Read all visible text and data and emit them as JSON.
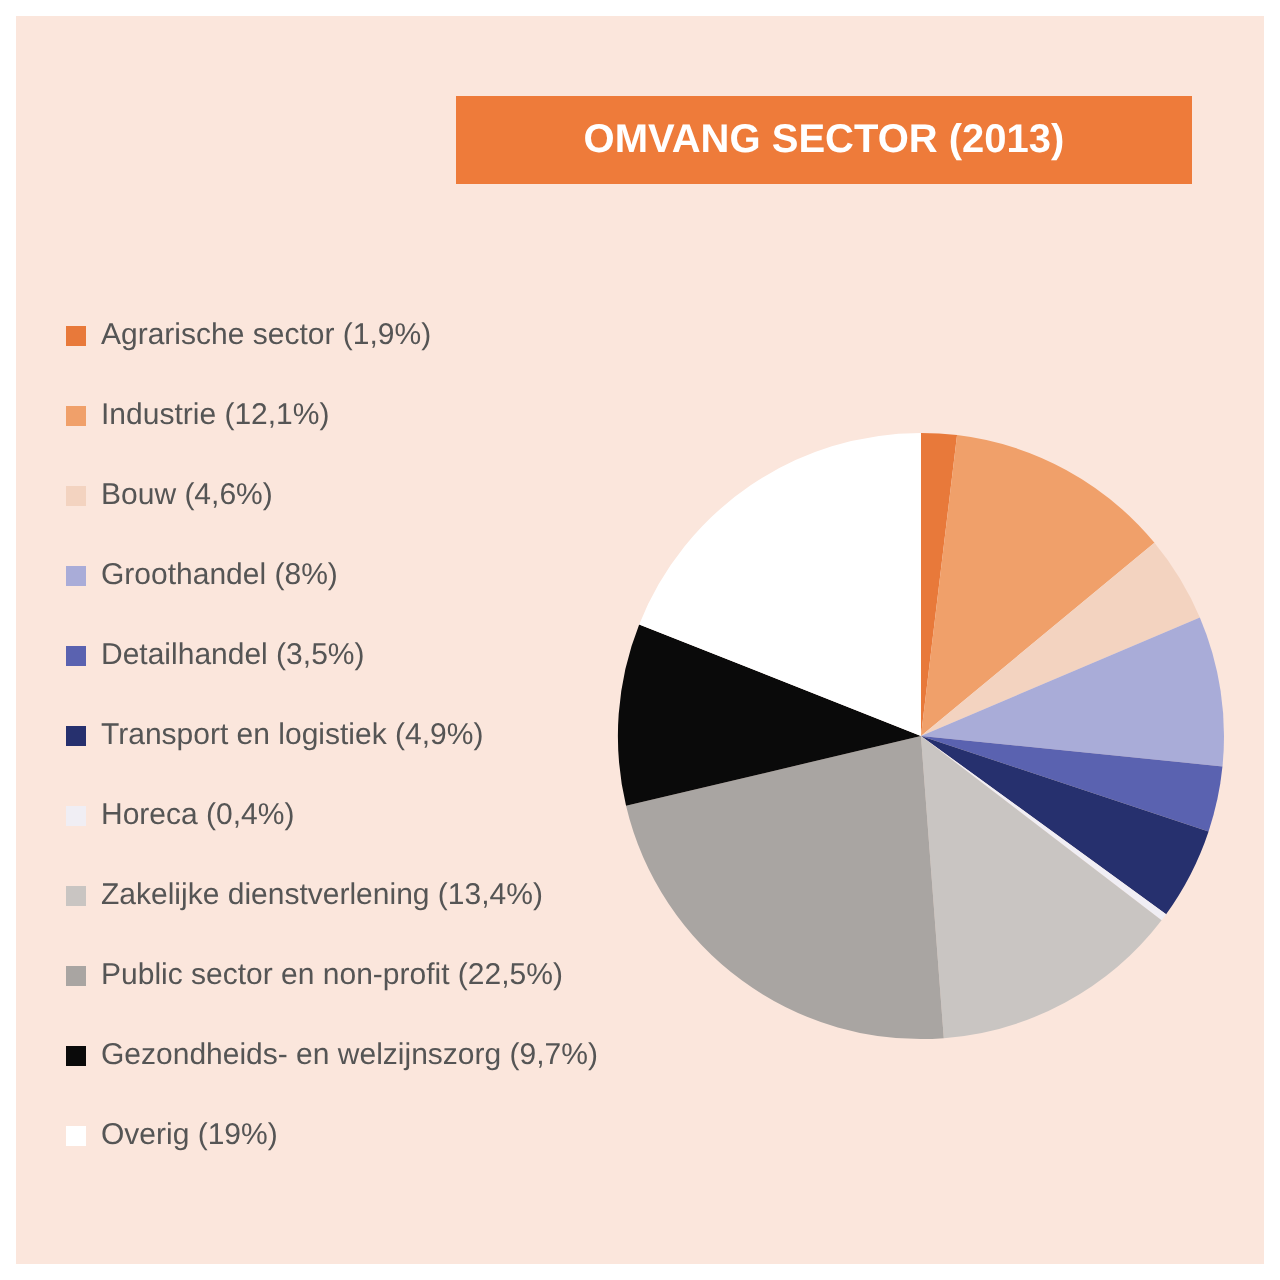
{
  "chart_data": {
    "type": "pie",
    "title": "OMVANG SECTOR (2013)",
    "categories": [
      "Agrarische sector (1,9%)",
      "Industrie (12,1%)",
      "Bouw (4,6%)",
      "Groothandel (8%)",
      "Detailhandel (3,5%)",
      "Transport en logistiek (4,9%)",
      "Horeca (0,4%)",
      "Zakelijke dienstverlening (13,4%)",
      "Public sector en non-profit (22,5%)",
      "Gezondheids- en welzijnszorg (9,7%)",
      "Overig (19%)"
    ],
    "values": [
      1.9,
      12.1,
      4.6,
      8,
      3.5,
      4.9,
      0.4,
      13.4,
      22.5,
      9.7,
      19
    ],
    "colors": [
      "#e8793a",
      "#f0a06a",
      "#f3d3c0",
      "#a9acd8",
      "#5a62b0",
      "#26306e",
      "#f0eef4",
      "#c9c5c2",
      "#a9a5a2",
      "#0a0a0a",
      "#ffffff"
    ],
    "legend": "left"
  }
}
